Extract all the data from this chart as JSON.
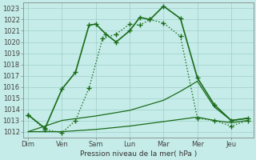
{
  "background_color": "#c5ece8",
  "grid_color": "#9dcfca",
  "line_color": "#1a6b1a",
  "x_labels": [
    "Dim",
    "Ven",
    "Sam",
    "Lun",
    "Mar",
    "Mer",
    "Jeu"
  ],
  "ylabel": "Pression niveau de la mer( hPa )",
  "ylim": [
    1011.5,
    1023.5
  ],
  "yticks": [
    1012,
    1013,
    1014,
    1015,
    1016,
    1017,
    1018,
    1019,
    1020,
    1021,
    1022,
    1023
  ],
  "series": [
    {
      "x": [
        0,
        0.5,
        1.0,
        1.4,
        1.8,
        2.0,
        2.3,
        2.6,
        3.0,
        3.3,
        3.6,
        4.0,
        4.5,
        5.0,
        5.5,
        6.0,
        6.5
      ],
      "y": [
        1013.5,
        1012.3,
        1015.8,
        1017.3,
        1021.5,
        1021.6,
        1020.7,
        1020.0,
        1021.0,
        1022.2,
        1022.0,
        1023.2,
        1022.1,
        1016.8,
        1014.4,
        1013.0,
        1013.2
      ],
      "style": "-",
      "marker": "+",
      "markersize": 4,
      "linewidth": 1.2
    },
    {
      "x": [
        0,
        0.5,
        1.0,
        1.4,
        1.8,
        2.2,
        2.6,
        3.0,
        3.3,
        3.6,
        4.0,
        4.5,
        5.0,
        5.5,
        6.0,
        6.5
      ],
      "y": [
        1013.5,
        1012.2,
        1011.9,
        1013.0,
        1015.9,
        1020.3,
        1020.7,
        1021.6,
        1021.5,
        1022.0,
        1021.7,
        1020.5,
        1013.2,
        1013.0,
        1012.5,
        1013.0
      ],
      "style": ":",
      "marker": "+",
      "markersize": 4,
      "linewidth": 1.0
    },
    {
      "x": [
        0,
        1.0,
        2.0,
        3.0,
        4.0,
        4.5,
        5.0,
        5.5,
        6.0,
        6.5
      ],
      "y": [
        1012.0,
        1013.0,
        1013.4,
        1013.9,
        1014.8,
        1015.6,
        1016.5,
        1014.2,
        1013.0,
        1013.2
      ],
      "style": "-",
      "marker": null,
      "markersize": 0,
      "linewidth": 0.9
    },
    {
      "x": [
        0,
        1.0,
        2.0,
        3.0,
        4.0,
        5.0,
        5.5,
        6.0,
        6.5
      ],
      "y": [
        1012.0,
        1012.0,
        1012.2,
        1012.5,
        1012.9,
        1013.3,
        1013.0,
        1012.8,
        1013.0
      ],
      "style": "-",
      "marker": null,
      "markersize": 0,
      "linewidth": 0.9
    }
  ],
  "xtick_positions": [
    0,
    1,
    2,
    3,
    4,
    5,
    6
  ],
  "figsize": [
    3.2,
    2.0
  ],
  "dpi": 100
}
